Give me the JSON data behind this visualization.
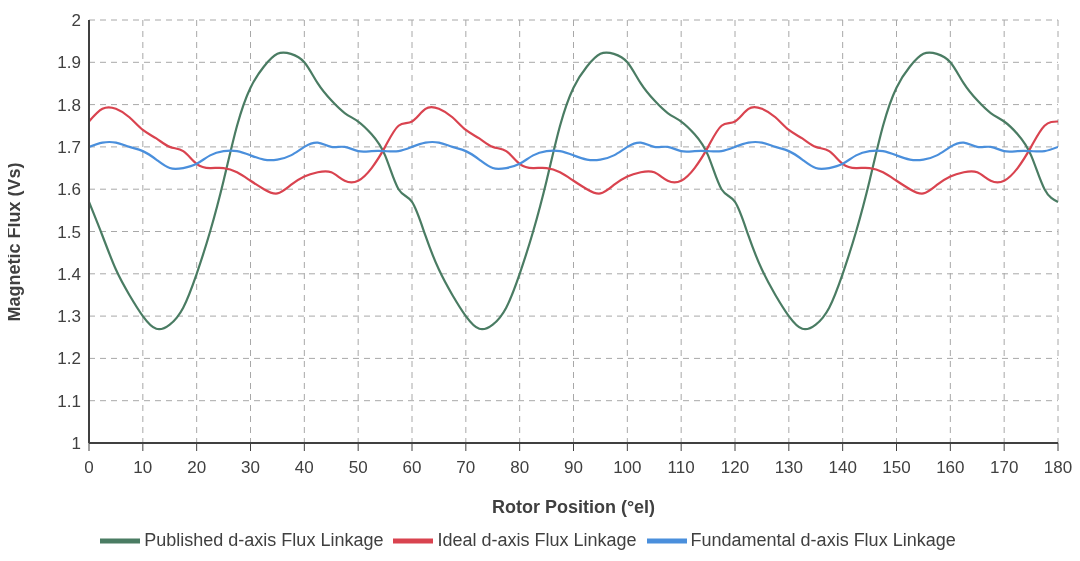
{
  "chart_data": {
    "type": "line",
    "xlabel": "Rotor Position (°el)",
    "ylabel": "Magnetic Flux (Vs)",
    "x": [
      0,
      2.5,
      5,
      7.5,
      10,
      12.5,
      15,
      17.5,
      20,
      22.5,
      25,
      27.5,
      30,
      32.5,
      35,
      37.5,
      40,
      42.5,
      45,
      47.5,
      50,
      52.5,
      55,
      57.5,
      60,
      62.5,
      65,
      67.5,
      70,
      72.5,
      75,
      77.5,
      80,
      82.5,
      85,
      87.5,
      90,
      92.5,
      95,
      97.5,
      100,
      102.5,
      105,
      107.5,
      110,
      112.5,
      115,
      117.5,
      120,
      122.5,
      125,
      127.5,
      130,
      132.5,
      135,
      137.5,
      140,
      142.5,
      145,
      147.5,
      150,
      152.5,
      155,
      157.5,
      160,
      162.5,
      165,
      167.5,
      170,
      172.5,
      175,
      177.5,
      180
    ],
    "series": [
      {
        "name": "Published d-axis Flux Linkage",
        "color": "#4a7c63",
        "values": [
          1.57,
          1.49,
          1.41,
          1.35,
          1.3,
          1.27,
          1.28,
          1.32,
          1.4,
          1.5,
          1.62,
          1.75,
          1.84,
          1.89,
          1.92,
          1.92,
          1.9,
          1.85,
          1.81,
          1.78,
          1.76,
          1.73,
          1.68,
          1.6,
          1.57,
          1.49,
          1.41,
          1.35,
          1.3,
          1.27,
          1.28,
          1.32,
          1.4,
          1.5,
          1.62,
          1.75,
          1.84,
          1.89,
          1.92,
          1.92,
          1.9,
          1.85,
          1.81,
          1.78,
          1.76,
          1.73,
          1.68,
          1.6,
          1.57,
          1.49,
          1.41,
          1.35,
          1.3,
          1.27,
          1.28,
          1.32,
          1.4,
          1.5,
          1.62,
          1.75,
          1.84,
          1.89,
          1.92,
          1.92,
          1.9,
          1.85,
          1.81,
          1.78,
          1.76,
          1.73,
          1.68,
          1.6,
          1.57
        ]
      },
      {
        "name": "Ideal d-axis Flux Linkage",
        "color": "#d9434f",
        "values": [
          1.76,
          1.79,
          1.79,
          1.77,
          1.74,
          1.72,
          1.7,
          1.69,
          1.66,
          1.65,
          1.65,
          1.64,
          1.62,
          1.6,
          1.59,
          1.61,
          1.63,
          1.64,
          1.64,
          1.62,
          1.62,
          1.65,
          1.7,
          1.75,
          1.76,
          1.79,
          1.79,
          1.77,
          1.74,
          1.72,
          1.7,
          1.69,
          1.66,
          1.65,
          1.65,
          1.64,
          1.62,
          1.6,
          1.59,
          1.61,
          1.63,
          1.64,
          1.64,
          1.62,
          1.62,
          1.65,
          1.7,
          1.75,
          1.76,
          1.79,
          1.79,
          1.77,
          1.74,
          1.72,
          1.7,
          1.69,
          1.66,
          1.65,
          1.65,
          1.64,
          1.62,
          1.6,
          1.59,
          1.61,
          1.63,
          1.64,
          1.64,
          1.62,
          1.62,
          1.65,
          1.7,
          1.75,
          1.76
        ]
      },
      {
        "name": "Fundamental d-axis Flux Linkage",
        "color": "#4a8fdc",
        "values": [
          1.7,
          1.71,
          1.71,
          1.7,
          1.69,
          1.67,
          1.65,
          1.65,
          1.66,
          1.68,
          1.69,
          1.69,
          1.68,
          1.67,
          1.67,
          1.68,
          1.7,
          1.71,
          1.7,
          1.7,
          1.69,
          1.69,
          1.69,
          1.69,
          1.7,
          1.71,
          1.71,
          1.7,
          1.69,
          1.67,
          1.65,
          1.65,
          1.66,
          1.68,
          1.69,
          1.69,
          1.68,
          1.67,
          1.67,
          1.68,
          1.7,
          1.71,
          1.7,
          1.7,
          1.69,
          1.69,
          1.69,
          1.69,
          1.7,
          1.71,
          1.71,
          1.7,
          1.69,
          1.67,
          1.65,
          1.65,
          1.66,
          1.68,
          1.69,
          1.69,
          1.68,
          1.67,
          1.67,
          1.68,
          1.7,
          1.71,
          1.7,
          1.7,
          1.69,
          1.69,
          1.69,
          1.69,
          1.7
        ]
      }
    ],
    "xlim": [
      0,
      180
    ],
    "xticks": [
      0,
      10,
      20,
      30,
      40,
      50,
      60,
      70,
      80,
      90,
      100,
      110,
      120,
      130,
      140,
      150,
      160,
      170,
      180
    ],
    "ylim": [
      1,
      2
    ],
    "yticks": [
      1,
      1.1,
      1.2,
      1.3,
      1.4,
      1.5,
      1.6,
      1.7,
      1.8,
      1.9,
      2
    ],
    "grid": true,
    "legend": "bottom",
    "marker": "none",
    "line_style": "solid"
  }
}
